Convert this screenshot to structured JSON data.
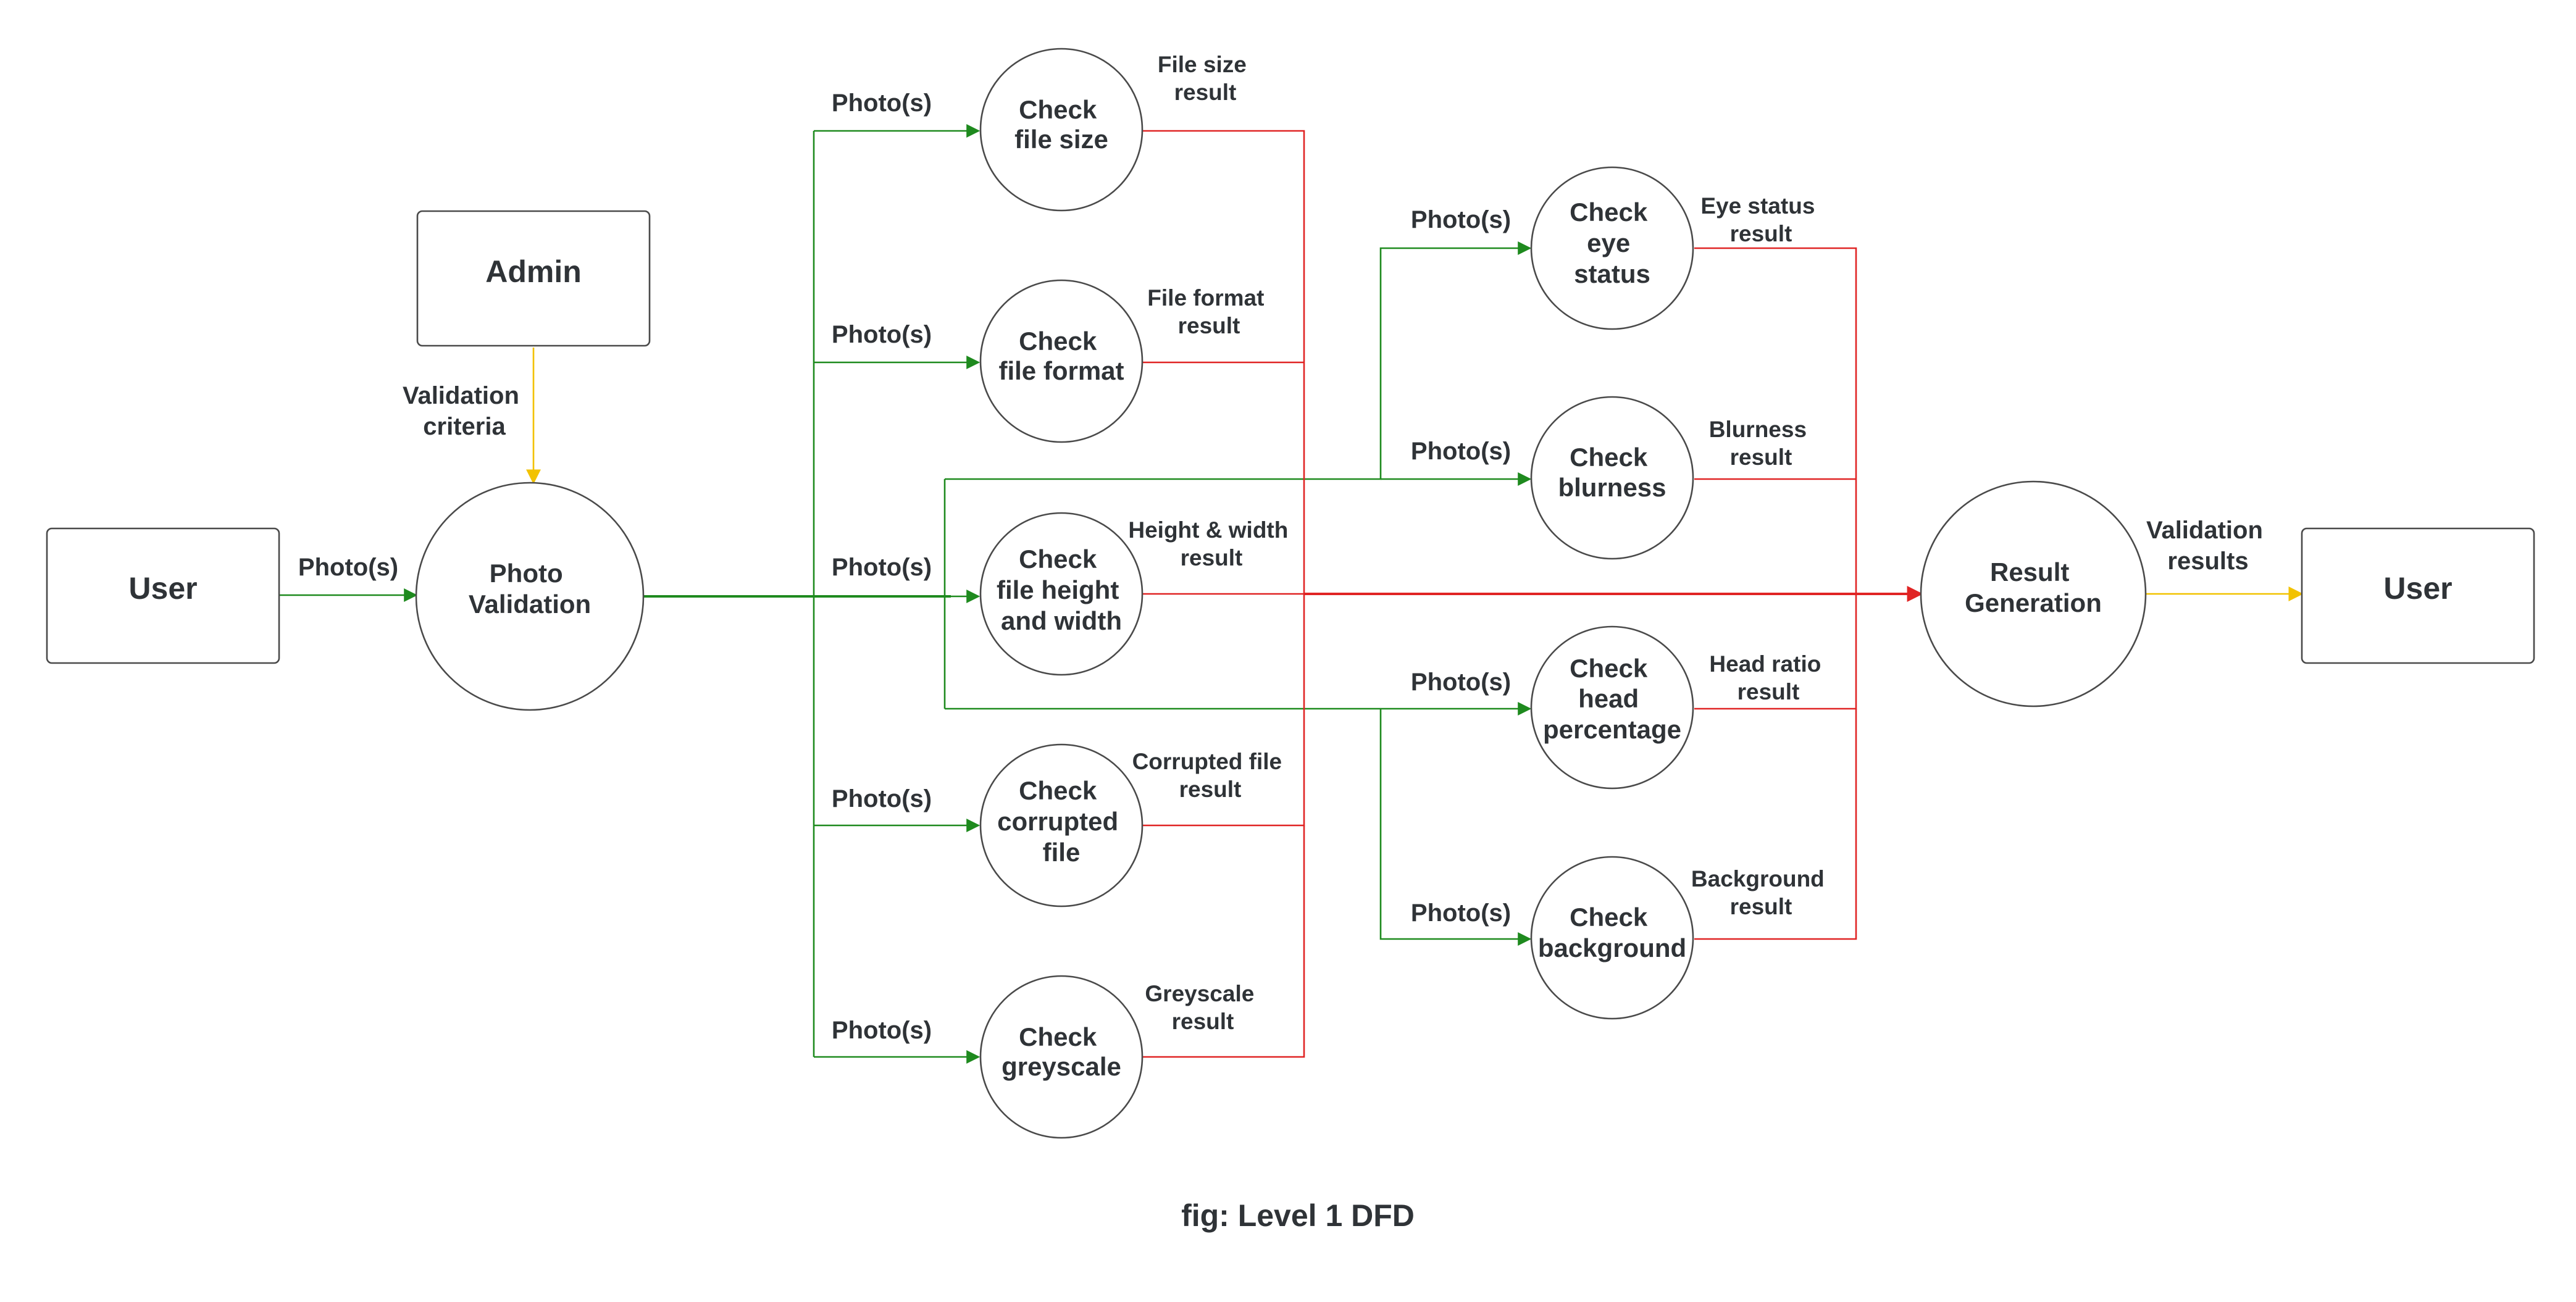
{
  "colors": {
    "flow_in": "#1e8a1e",
    "flow_out": "#e02424",
    "criteria": "#f2c200",
    "validation": "#f2c200",
    "input": "#1e8a1e"
  },
  "entities": {
    "user_left": "User",
    "admin": "Admin",
    "user_right": "User"
  },
  "processes": {
    "photo_validation": [
      "Photo",
      "Validation"
    ],
    "file_size": [
      "Check",
      "file size"
    ],
    "file_format": [
      "Check",
      "file format"
    ],
    "height_width": [
      "Check",
      "file height",
      "and width"
    ],
    "corrupted": [
      "Check",
      "corrupted",
      "file"
    ],
    "greyscale": [
      "Check",
      "greyscale"
    ],
    "eye_status": [
      "Check",
      "eye",
      "status"
    ],
    "blurness": [
      "Check",
      "blurness"
    ],
    "head_percentage": [
      "Check",
      "head",
      "percentage"
    ],
    "background": [
      "Check",
      "background"
    ],
    "result_generation": [
      "Result",
      "Generation"
    ]
  },
  "flows": {
    "user_photos": "Photo(s)",
    "validation_criteria": [
      "Validation",
      "criteria"
    ],
    "photos_file_size": "Photo(s)",
    "photos_file_format": "Photo(s)",
    "photos_height_width": "Photo(s)",
    "photos_corrupted": "Photo(s)",
    "photos_greyscale": "Photo(s)",
    "photos_eye": "Photo(s)",
    "photos_blurness": "Photo(s)",
    "photos_head": "Photo(s)",
    "photos_background": "Photo(s)",
    "file_size_result": [
      "File size",
      "result"
    ],
    "file_format_result": [
      "File format",
      "result"
    ],
    "height_width_result": [
      "Height & width",
      "result"
    ],
    "corrupted_result": [
      "Corrupted file",
      "result"
    ],
    "greyscale_result": [
      "Greyscale",
      "result"
    ],
    "eye_status_result": [
      "Eye status",
      "result"
    ],
    "blurness_result": [
      "Blurness",
      "result"
    ],
    "head_ratio_result": [
      "Head ratio",
      "result"
    ],
    "background_result": [
      "Background",
      "result"
    ],
    "validation_results": [
      "Validation",
      "results"
    ]
  },
  "caption": "fig: Level 1 DFD"
}
